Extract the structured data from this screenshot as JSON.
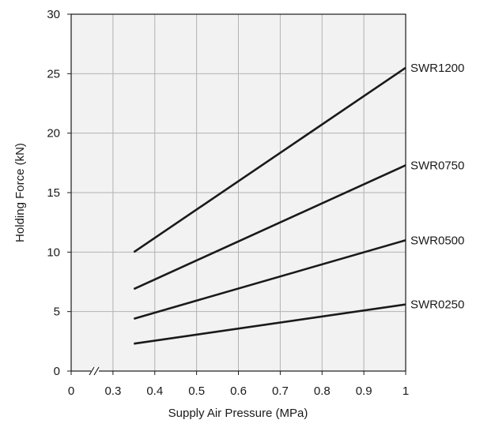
{
  "chart_data": {
    "type": "line",
    "xlabel": "Supply Air Pressure (MPa)",
    "ylabel": "Holding Force (kN)",
    "x_ticks": [
      "0",
      "0.3",
      "0.4",
      "0.5",
      "0.6",
      "0.7",
      "0.8",
      "0.9",
      "1"
    ],
    "y_ticks": [
      "0",
      "5",
      "10",
      "15",
      "20",
      "25",
      "30"
    ],
    "xlim": [
      0.2,
      1.0
    ],
    "ylim": [
      0,
      30
    ],
    "x_axis_break": true,
    "grid": true,
    "series": [
      {
        "name": "SWR1200",
        "x": [
          0.35,
          1.0
        ],
        "y": [
          10.0,
          25.5
        ]
      },
      {
        "name": "SWR0750",
        "x": [
          0.35,
          1.0
        ],
        "y": [
          6.9,
          17.3
        ]
      },
      {
        "name": "SWR0500",
        "x": [
          0.35,
          1.0
        ],
        "y": [
          4.4,
          11.0
        ]
      },
      {
        "name": "SWR0250",
        "x": [
          0.35,
          1.0
        ],
        "y": [
          2.3,
          5.6
        ]
      }
    ],
    "colors": {
      "plot_background": "#f2f2f2",
      "grid": "#b3b3b3",
      "line": "#1a1a1a"
    }
  }
}
